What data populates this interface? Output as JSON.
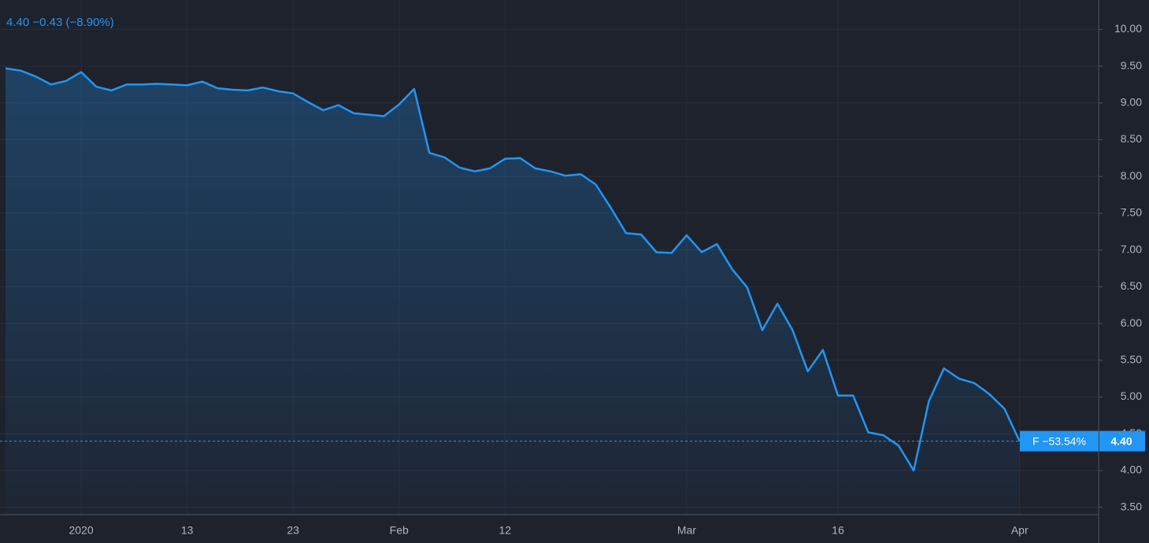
{
  "chart_data": {
    "type": "area",
    "header": "4.40 −0.43 (−8.90%)",
    "price_line_label": "F −53.54%",
    "last_value_label": "4.40",
    "categories": [
      null,
      null,
      null,
      null,
      null,
      "2020",
      null,
      null,
      null,
      null,
      null,
      null,
      "13",
      null,
      null,
      null,
      null,
      null,
      null,
      "23",
      null,
      null,
      null,
      null,
      null,
      null,
      "Feb",
      null,
      null,
      null,
      null,
      null,
      null,
      "12",
      null,
      null,
      null,
      null,
      null,
      null,
      null,
      null,
      null,
      null,
      null,
      "Mar",
      null,
      null,
      null,
      null,
      null,
      null,
      null,
      null,
      null,
      "16",
      null,
      null,
      null,
      null,
      null,
      null,
      null,
      null,
      null,
      null,
      null,
      "Apr"
    ],
    "values": [
      9.47,
      9.44,
      9.36,
      9.25,
      9.3,
      9.42,
      9.22,
      9.17,
      9.25,
      9.25,
      9.26,
      9.25,
      9.24,
      9.29,
      9.2,
      9.18,
      9.17,
      9.21,
      9.16,
      9.13,
      9.01,
      8.9,
      8.97,
      8.86,
      8.84,
      8.82,
      8.98,
      9.19,
      8.32,
      8.26,
      8.12,
      8.07,
      8.11,
      8.24,
      8.25,
      8.11,
      8.07,
      8.01,
      8.03,
      7.89,
      7.57,
      7.23,
      7.21,
      6.97,
      6.96,
      7.2,
      6.97,
      7.08,
      6.74,
      6.49,
      5.91,
      6.27,
      5.91,
      5.35,
      5.64,
      5.02,
      5.02,
      4.52,
      4.48,
      4.34,
      4.0,
      4.94,
      5.39,
      5.25,
      5.19,
      5.04,
      4.84,
      4.4
    ],
    "color": "#2196f3",
    "ylim": [
      3.4,
      10.4
    ],
    "yticks": [
      {
        "value": 3.5,
        "label": "3.50"
      },
      {
        "value": 4,
        "label": "4.00"
      },
      {
        "value": 4.5,
        "label": "4.50"
      },
      {
        "value": 5,
        "label": "5.00"
      },
      {
        "value": 5.5,
        "label": "5.50"
      },
      {
        "value": 6,
        "label": "6.00"
      },
      {
        "value": 6.5,
        "label": "6.50"
      },
      {
        "value": 7,
        "label": "7.00"
      },
      {
        "value": 7.5,
        "label": "7.50"
      },
      {
        "value": 8,
        "label": "8.00"
      },
      {
        "value": 8.5,
        "label": "8.50"
      },
      {
        "value": 9,
        "label": "9.00"
      },
      {
        "value": 9.5,
        "label": "9.50"
      },
      {
        "value": 10,
        "label": "10.00"
      }
    ],
    "grid": true
  }
}
